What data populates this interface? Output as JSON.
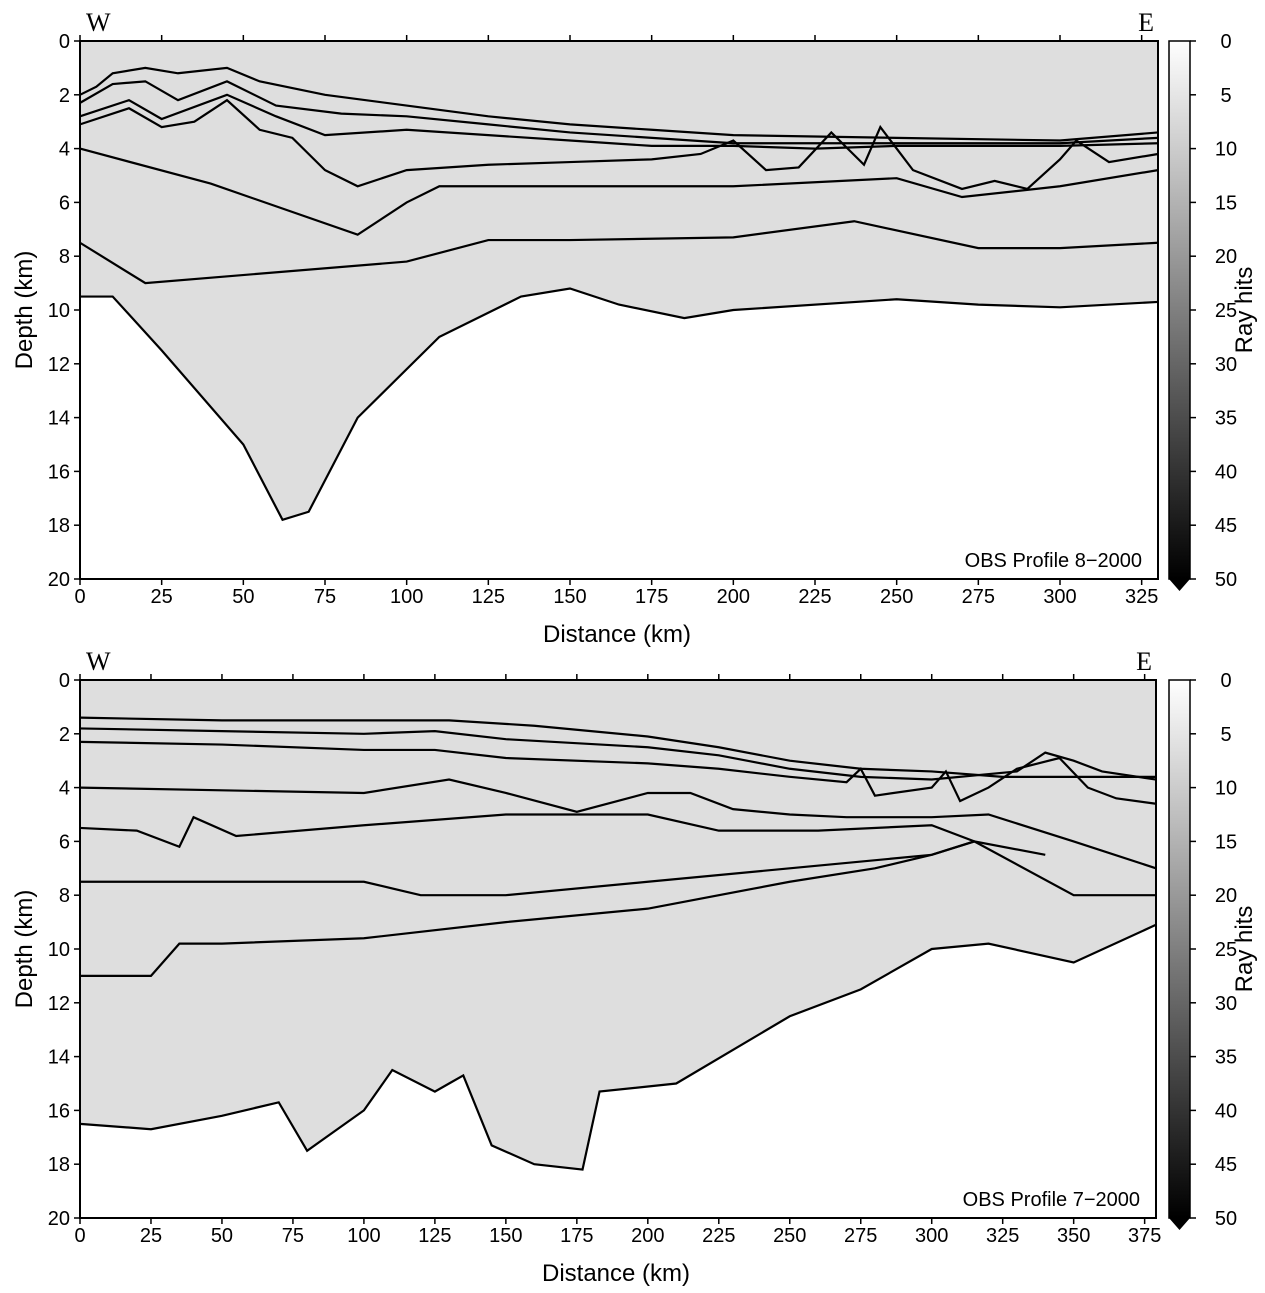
{
  "chart_data": [
    {
      "type": "line",
      "annotation": "OBS Profile 8−2000",
      "left_label": "W",
      "right_label": "E",
      "xlabel": "Distance (km)",
      "ylabel": "Depth (km)",
      "xlim": [
        0,
        330
      ],
      "ylim": [
        0,
        20
      ],
      "invert_y": true,
      "xticks": [
        0,
        25,
        50,
        75,
        100,
        125,
        150,
        175,
        200,
        225,
        250,
        275,
        300,
        325
      ],
      "yticks": [
        0,
        2,
        4,
        6,
        8,
        10,
        12,
        14,
        16,
        18,
        20
      ],
      "coverage_fill": "#dedede",
      "colorbar": {
        "label": "Ray hits",
        "lim": [
          0,
          50
        ],
        "ticks": [
          0,
          5,
          10,
          15,
          20,
          25,
          30,
          35,
          40,
          45,
          50
        ]
      },
      "series": [
        {
          "color": "#000000",
          "x": [
            0,
            5,
            10,
            20,
            30,
            45,
            55,
            75,
            100,
            125,
            150,
            175,
            200,
            250,
            300,
            330
          ],
          "values": [
            2.0,
            1.7,
            1.2,
            1.0,
            1.2,
            1.0,
            1.5,
            2.0,
            2.4,
            2.8,
            3.1,
            3.3,
            3.5,
            3.6,
            3.7,
            3.4
          ]
        },
        {
          "color": "#000000",
          "x": [
            0,
            10,
            20,
            30,
            45,
            60,
            80,
            100,
            125,
            150,
            200,
            250,
            300,
            330
          ],
          "values": [
            2.3,
            1.6,
            1.5,
            2.2,
            1.5,
            2.4,
            2.7,
            2.8,
            3.1,
            3.4,
            3.8,
            3.8,
            3.8,
            3.6
          ]
        },
        {
          "color": "#000000",
          "x": [
            0,
            15,
            25,
            45,
            60,
            75,
            100,
            125,
            150,
            175,
            200,
            225,
            250,
            300,
            330
          ],
          "values": [
            2.8,
            2.2,
            2.9,
            2.0,
            2.8,
            3.5,
            3.3,
            3.5,
            3.7,
            3.9,
            3.9,
            4.0,
            3.9,
            3.9,
            3.8
          ]
        },
        {
          "color": "#000000",
          "x": [
            0,
            15,
            25,
            35,
            45,
            55,
            65,
            75,
            85,
            100,
            125,
            150,
            175,
            190,
            200,
            210,
            220,
            230,
            240,
            245,
            255,
            270,
            280,
            290,
            300,
            305,
            315,
            330
          ],
          "values": [
            3.1,
            2.5,
            3.2,
            3.0,
            2.2,
            3.3,
            3.6,
            4.8,
            5.4,
            4.8,
            4.6,
            4.5,
            4.4,
            4.2,
            3.7,
            4.8,
            4.7,
            3.4,
            4.6,
            3.2,
            4.8,
            5.5,
            5.2,
            5.5,
            4.4,
            3.7,
            4.5,
            4.2
          ]
        },
        {
          "color": "#000000",
          "x": [
            0,
            40,
            85,
            100,
            110,
            150,
            200,
            250,
            270,
            300,
            330
          ],
          "values": [
            4.0,
            5.3,
            7.2,
            6.0,
            5.4,
            5.4,
            5.4,
            5.1,
            5.8,
            5.4,
            4.8
          ]
        },
        {
          "color": "#000000",
          "x": [
            0,
            20,
            100,
            125,
            150,
            200,
            237,
            275,
            300,
            330
          ],
          "values": [
            7.5,
            9.0,
            8.2,
            7.4,
            7.4,
            7.3,
            6.7,
            7.7,
            7.7,
            7.5
          ]
        },
        {
          "color": "#000000",
          "x": [
            0,
            10,
            25,
            50,
            62,
            70,
            85,
            110,
            135,
            150,
            165,
            185,
            200,
            250,
            275,
            300,
            330
          ],
          "values": [
            9.5,
            9.5,
            11.5,
            15.0,
            17.8,
            17.5,
            14.0,
            11.0,
            9.5,
            9.2,
            9.8,
            10.3,
            10.0,
            9.6,
            9.8,
            9.9,
            9.7
          ]
        }
      ]
    },
    {
      "type": "line",
      "annotation": "OBS Profile 7−2000",
      "left_label": "W",
      "right_label": "E",
      "xlabel": "Distance (km)",
      "ylabel": "Depth (km)",
      "xlim": [
        0,
        379
      ],
      "ylim": [
        0,
        20
      ],
      "invert_y": true,
      "xticks": [
        0,
        25,
        50,
        75,
        100,
        125,
        150,
        175,
        200,
        225,
        250,
        275,
        300,
        325,
        350,
        375
      ],
      "yticks": [
        0,
        2,
        4,
        6,
        8,
        10,
        12,
        14,
        16,
        18,
        20
      ],
      "coverage_fill": "#dedede",
      "colorbar": {
        "label": "Ray hits",
        "lim": [
          0,
          50
        ],
        "ticks": [
          0,
          5,
          10,
          15,
          20,
          25,
          30,
          35,
          40,
          45,
          50
        ]
      },
      "series": [
        {
          "color": "#000000",
          "x": [
            0,
            50,
            100,
            130,
            160,
            200,
            225,
            250,
            275,
            300,
            325,
            350,
            379
          ],
          "values": [
            1.4,
            1.5,
            1.5,
            1.5,
            1.7,
            2.1,
            2.5,
            3.0,
            3.3,
            3.4,
            3.6,
            3.6,
            3.6
          ]
        },
        {
          "color": "#000000",
          "x": [
            0,
            50,
            100,
            125,
            150,
            200,
            225,
            250,
            275,
            300,
            330,
            340,
            350,
            360,
            379
          ],
          "values": [
            1.8,
            1.9,
            2.0,
            1.9,
            2.2,
            2.5,
            2.8,
            3.3,
            3.6,
            3.7,
            3.4,
            2.7,
            3.0,
            3.4,
            3.7
          ]
        },
        {
          "color": "#000000",
          "x": [
            0,
            50,
            100,
            125,
            150,
            200,
            225,
            250,
            270,
            275,
            280,
            300,
            305,
            310,
            320,
            330,
            345,
            355,
            365,
            379
          ],
          "values": [
            2.3,
            2.4,
            2.6,
            2.6,
            2.9,
            3.1,
            3.3,
            3.6,
            3.8,
            3.3,
            4.3,
            4.0,
            3.4,
            4.5,
            4.0,
            3.3,
            2.9,
            4.0,
            4.4,
            4.6
          ]
        },
        {
          "color": "#000000",
          "x": [
            0,
            50,
            100,
            130,
            150,
            175,
            200,
            215,
            230,
            250,
            270,
            300,
            320,
            350,
            379
          ],
          "values": [
            4.0,
            4.1,
            4.2,
            3.7,
            4.2,
            4.9,
            4.2,
            4.2,
            4.8,
            5.0,
            5.1,
            5.1,
            5.0,
            6.0,
            7.0
          ]
        },
        {
          "color": "#000000",
          "x": [
            0,
            20,
            35,
            40,
            55,
            100,
            150,
            200,
            225,
            260,
            300,
            315,
            350,
            379
          ],
          "values": [
            5.5,
            5.6,
            6.2,
            5.1,
            5.8,
            5.4,
            5.0,
            5.0,
            5.6,
            5.6,
            5.4,
            6.0,
            8.0,
            8.0
          ]
        },
        {
          "color": "#000000",
          "x": [
            0,
            50,
            100,
            120,
            150,
            200,
            250,
            300,
            315,
            340
          ],
          "values": [
            7.5,
            7.5,
            7.5,
            8.0,
            8.0,
            7.5,
            7.0,
            6.5,
            6.0,
            6.5
          ]
        },
        {
          "color": "#000000",
          "x": [
            0,
            25,
            35,
            50,
            100,
            150,
            200,
            250,
            280,
            300,
            315
          ],
          "values": [
            11.0,
            11.0,
            9.8,
            9.8,
            9.6,
            9.0,
            8.5,
            7.5,
            7.0,
            6.5,
            6.0
          ]
        },
        {
          "color": "#000000",
          "x": [
            0,
            25,
            50,
            70,
            80,
            100,
            110,
            125,
            130,
            135,
            145,
            160,
            177,
            183,
            210,
            250,
            275,
            300,
            320,
            350,
            379
          ],
          "values": [
            16.5,
            16.7,
            16.2,
            15.7,
            17.5,
            16.0,
            14.5,
            15.3,
            15.0,
            14.7,
            17.3,
            18.0,
            18.2,
            15.3,
            15.0,
            12.5,
            11.5,
            10.0,
            9.8,
            10.5,
            9.1
          ]
        }
      ]
    }
  ]
}
